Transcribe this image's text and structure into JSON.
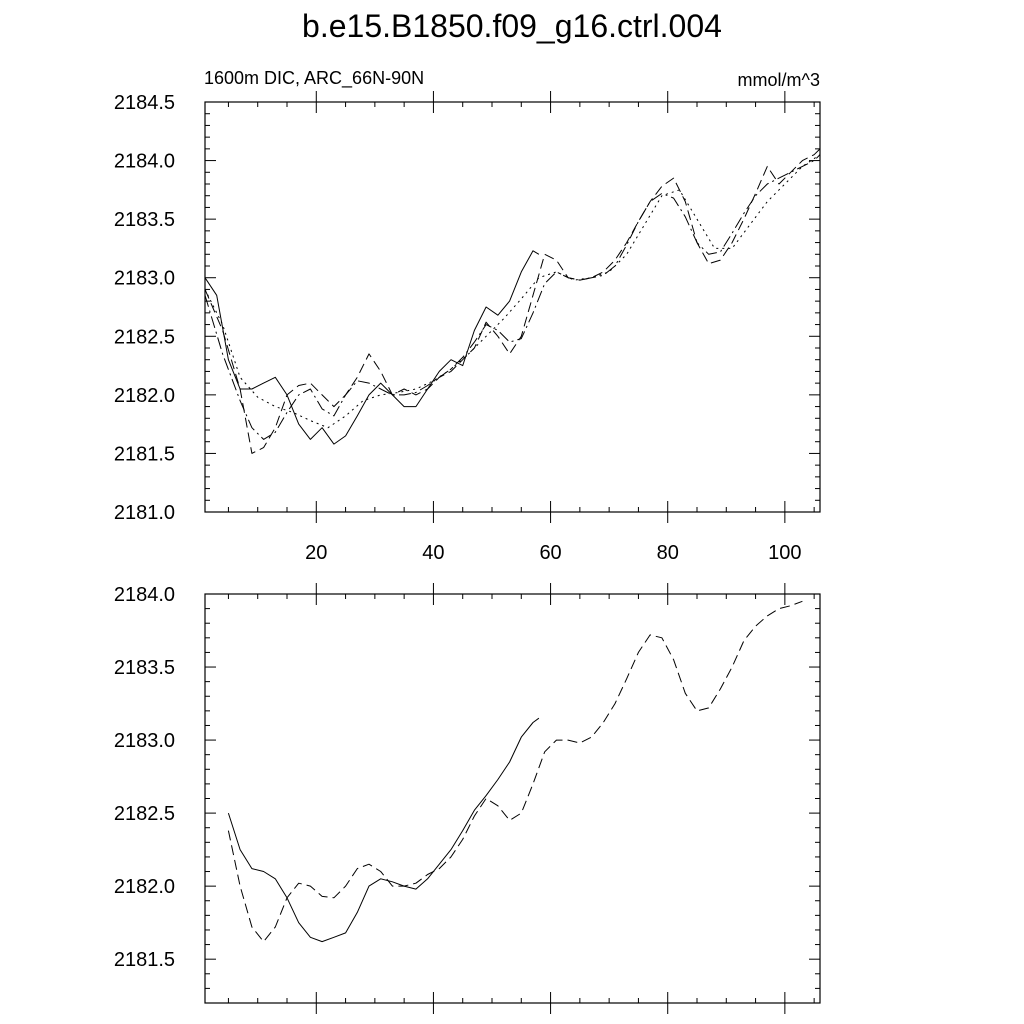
{
  "title": "b.e15.B1850.f09_g16.ctrl.004",
  "chart_data": [
    {
      "type": "line",
      "panel": "top",
      "subtitle_left": "1600m DIC, ARC_66N-90N",
      "subtitle_right": "mmol/m^3",
      "xlim": [
        1,
        106
      ],
      "ylim": [
        2181.0,
        2184.5
      ],
      "x_ticks": [
        20,
        40,
        60,
        80,
        100
      ],
      "x_tick_labels": [
        "20",
        "40",
        "60",
        "80",
        "100"
      ],
      "y_ticks": [
        2181.0,
        2181.5,
        2182.0,
        2182.5,
        2183.0,
        2183.5,
        2184.0,
        2184.5
      ],
      "y_tick_labels": [
        "2181.0",
        "2181.5",
        "2182.0",
        "2182.5",
        "2183.0",
        "2183.5",
        "2184.0",
        "2184.5"
      ],
      "series": [
        {
          "style": "solid",
          "x": [
            1,
            3,
            5,
            7,
            9,
            11,
            13,
            15,
            17,
            19,
            21,
            23,
            25,
            27,
            29,
            31,
            33,
            35,
            37,
            39,
            41,
            43,
            45,
            47,
            49,
            51,
            53,
            55,
            57,
            58
          ],
          "y": [
            2183.0,
            2182.85,
            2182.3,
            2182.05,
            2182.05,
            2182.1,
            2182.15,
            2182.0,
            2181.75,
            2181.62,
            2181.72,
            2181.58,
            2181.65,
            2181.82,
            2182.0,
            2182.1,
            2182.0,
            2181.9,
            2181.9,
            2182.05,
            2182.2,
            2182.3,
            2182.25,
            2182.55,
            2182.75,
            2182.68,
            2182.8,
            2183.05,
            2183.23,
            2183.2
          ]
        },
        {
          "style": "dashed",
          "x": [
            1,
            4,
            7,
            9,
            11,
            13,
            15,
            17,
            19,
            21,
            23,
            25,
            27,
            29,
            31,
            33,
            35,
            37,
            39,
            41,
            43,
            45,
            47,
            49,
            51,
            53,
            55,
            57,
            59,
            61,
            63,
            65,
            67,
            69,
            71,
            73,
            75,
            77,
            79,
            81,
            83,
            85,
            87,
            89,
            91,
            93,
            95,
            97,
            99,
            101,
            103,
            105,
            106
          ],
          "y": [
            2182.9,
            2182.55,
            2182.05,
            2181.5,
            2181.55,
            2181.72,
            2182.0,
            2182.08,
            2182.1,
            2182.0,
            2181.9,
            2182.0,
            2182.15,
            2182.35,
            2182.2,
            2182.0,
            2182.05,
            2182.0,
            2182.05,
            2182.15,
            2182.2,
            2182.3,
            2182.4,
            2182.62,
            2182.5,
            2182.35,
            2182.5,
            2182.85,
            2183.2,
            2183.15,
            2183.0,
            2182.98,
            2183.0,
            2183.05,
            2183.15,
            2183.3,
            2183.48,
            2183.65,
            2183.78,
            2183.85,
            2183.65,
            2183.3,
            2183.12,
            2183.15,
            2183.3,
            2183.5,
            2183.72,
            2183.95,
            2183.8,
            2183.9,
            2184.0,
            2184.05,
            2184.1
          ]
        },
        {
          "style": "dash-dot",
          "x": [
            1,
            4,
            7,
            9,
            11,
            13,
            15,
            17,
            19,
            21,
            23,
            25,
            27,
            29,
            31,
            33,
            35,
            37,
            39,
            41,
            43,
            45,
            47,
            49,
            51,
            53,
            55,
            57,
            59,
            61,
            63,
            65,
            67,
            69,
            71,
            73,
            75,
            77,
            79,
            81,
            83,
            85,
            87,
            89,
            91,
            93,
            95,
            97,
            99,
            101,
            103,
            105,
            106
          ],
          "y": [
            2182.85,
            2182.35,
            2181.95,
            2181.72,
            2181.62,
            2181.68,
            2181.85,
            2182.0,
            2182.05,
            2181.88,
            2181.82,
            2182.0,
            2182.12,
            2182.1,
            2182.05,
            2182.0,
            2182.0,
            2182.02,
            2182.08,
            2182.15,
            2182.22,
            2182.32,
            2182.45,
            2182.6,
            2182.55,
            2182.45,
            2182.48,
            2182.7,
            2182.95,
            2183.05,
            2183.0,
            2182.98,
            2183.0,
            2183.02,
            2183.1,
            2183.28,
            2183.48,
            2183.65,
            2183.72,
            2183.68,
            2183.52,
            2183.3,
            2183.2,
            2183.22,
            2183.38,
            2183.55,
            2183.7,
            2183.8,
            2183.85,
            2183.9,
            2183.95,
            2184.0,
            2184.05
          ]
        },
        {
          "style": "dotted",
          "x": [
            1,
            4,
            7,
            10,
            13,
            16,
            19,
            22,
            25,
            28,
            31,
            34,
            37,
            40,
            43,
            46,
            49,
            52,
            55,
            58,
            61,
            64,
            67,
            70,
            73,
            76,
            79,
            82,
            85,
            88,
            91,
            94,
            97,
            100,
            103,
            106
          ],
          "y": [
            2182.9,
            2182.6,
            2182.15,
            2181.98,
            2181.9,
            2181.85,
            2181.78,
            2181.72,
            2181.82,
            2181.95,
            2182.0,
            2182.02,
            2182.05,
            2182.12,
            2182.22,
            2182.35,
            2182.5,
            2182.65,
            2182.82,
            2183.0,
            2183.05,
            2182.98,
            2183.0,
            2183.05,
            2183.2,
            2183.45,
            2183.7,
            2183.75,
            2183.5,
            2183.25,
            2183.25,
            2183.45,
            2183.65,
            2183.8,
            2183.95,
            2184.05
          ]
        }
      ]
    },
    {
      "type": "line",
      "panel": "bottom",
      "xlim": [
        1,
        106
      ],
      "ylim": [
        2181.2,
        2184.0
      ],
      "x_ticks": [
        20,
        40,
        60,
        80,
        100
      ],
      "y_ticks": [
        2181.5,
        2182.0,
        2182.5,
        2183.0,
        2183.5,
        2184.0
      ],
      "y_tick_labels": [
        "2181.5",
        "2182.0",
        "2182.5",
        "2183.0",
        "2183.5",
        "2184.0"
      ],
      "series": [
        {
          "style": "solid",
          "x": [
            5,
            7,
            9,
            11,
            13,
            15,
            17,
            19,
            21,
            23,
            25,
            27,
            29,
            31,
            33,
            35,
            37,
            39,
            41,
            43,
            45,
            47,
            49,
            51,
            53,
            55,
            57,
            58
          ],
          "y": [
            2182.5,
            2182.25,
            2182.12,
            2182.1,
            2182.05,
            2181.92,
            2181.75,
            2181.65,
            2181.62,
            2181.65,
            2181.68,
            2181.82,
            2182.0,
            2182.05,
            2182.03,
            2182.0,
            2181.98,
            2182.05,
            2182.15,
            2182.25,
            2182.38,
            2182.52,
            2182.62,
            2182.73,
            2182.85,
            2183.02,
            2183.12,
            2183.15
          ]
        },
        {
          "style": "dashed",
          "x": [
            5,
            7,
            9,
            11,
            13,
            15,
            17,
            19,
            21,
            23,
            25,
            27,
            29,
            31,
            33,
            35,
            37,
            39,
            41,
            43,
            45,
            47,
            49,
            51,
            53,
            55,
            57,
            59,
            61,
            63,
            65,
            67,
            69,
            71,
            73,
            75,
            77,
            79,
            81,
            83,
            85,
            87,
            89,
            91,
            93,
            95,
            97,
            99,
            101,
            103
          ],
          "y": [
            2182.38,
            2182.0,
            2181.72,
            2181.62,
            2181.72,
            2181.92,
            2182.02,
            2182.0,
            2181.93,
            2181.92,
            2182.0,
            2182.12,
            2182.15,
            2182.1,
            2182.0,
            2182.0,
            2182.02,
            2182.08,
            2182.12,
            2182.2,
            2182.32,
            2182.48,
            2182.6,
            2182.55,
            2182.45,
            2182.5,
            2182.7,
            2182.92,
            2183.0,
            2183.0,
            2182.98,
            2183.02,
            2183.12,
            2183.25,
            2183.42,
            2183.6,
            2183.72,
            2183.7,
            2183.55,
            2183.32,
            2183.2,
            2183.22,
            2183.35,
            2183.5,
            2183.68,
            2183.78,
            2183.85,
            2183.9,
            2183.92,
            2183.95
          ]
        }
      ]
    }
  ]
}
